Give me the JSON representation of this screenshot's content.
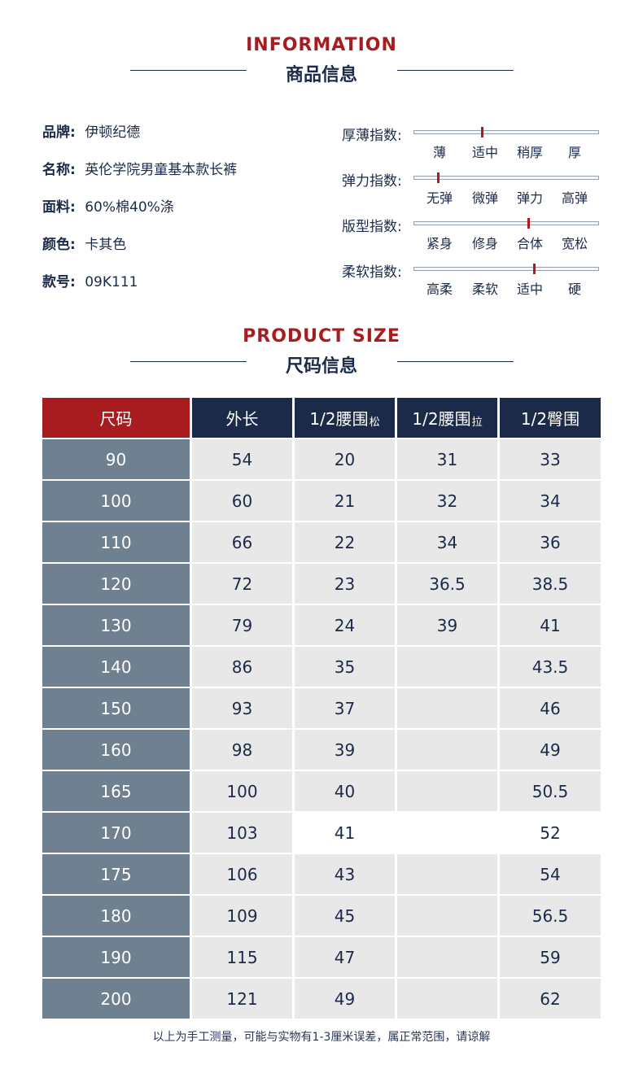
{
  "section_info": {
    "en": "INFORMATION",
    "cn": "商品信息"
  },
  "info": [
    {
      "key": "品牌",
      "value": "伊顿纪德"
    },
    {
      "key": "名称",
      "value": "英伦学院男童基本款长裤"
    },
    {
      "key": "面料",
      "value": "60%棉40%涤"
    },
    {
      "key": "颜色",
      "value": "卡其色"
    },
    {
      "key": "款号",
      "value": "09K111"
    }
  ],
  "indices": [
    {
      "label": "厚薄指数:",
      "options": [
        "薄",
        "适中",
        "稍厚",
        "厚"
      ],
      "marker_level": 0.37
    },
    {
      "label": "弹力指数:",
      "options": [
        "无弹",
        "微弹",
        "弹力",
        "高弹"
      ],
      "marker_level": 0.13
    },
    {
      "label": "版型指数:",
      "options": [
        "紧身",
        "修身",
        "合体",
        "宽松"
      ],
      "marker_level": 0.62
    },
    {
      "label": "柔软指数:",
      "options": [
        "高柔",
        "柔软",
        "适中",
        "硬"
      ],
      "marker_level": 0.65
    }
  ],
  "section_size": {
    "en": "PRODUCT SIZE",
    "cn": "尺码信息"
  },
  "table": {
    "headers": [
      {
        "main": "尺码",
        "sub": ""
      },
      {
        "main": "外长",
        "sub": ""
      },
      {
        "main": "1/2腰围",
        "sub": "松"
      },
      {
        "main": "1/2腰围",
        "sub": "拉"
      },
      {
        "main": "1/2臀围",
        "sub": ""
      }
    ],
    "rows": [
      [
        "90",
        "54",
        "20",
        "31",
        "33"
      ],
      [
        "100",
        "60",
        "21",
        "32",
        "34"
      ],
      [
        "110",
        "66",
        "22",
        "34",
        "36"
      ],
      [
        "120",
        "72",
        "23",
        "36.5",
        "38.5"
      ],
      [
        "130",
        "79",
        "24",
        "39",
        "41"
      ],
      [
        "140",
        "86",
        "35",
        "",
        "43.5"
      ],
      [
        "150",
        "93",
        "37",
        "",
        "46"
      ],
      [
        "160",
        "98",
        "39",
        "",
        "49"
      ],
      [
        "165",
        "100",
        "40",
        "",
        "50.5"
      ],
      [
        "170",
        "103",
        "41",
        "",
        "52"
      ],
      [
        "175",
        "106",
        "43",
        "",
        "54"
      ],
      [
        "180",
        "109",
        "45",
        "",
        "56.5"
      ],
      [
        "190",
        "115",
        "47",
        "",
        "59"
      ],
      [
        "200",
        "121",
        "49",
        "",
        "62"
      ]
    ]
  },
  "footnote": "以上为手工测量，可能与实物有1-3厘米误差，属正常范围，请谅解",
  "colors": {
    "red": "#a81b1f",
    "navy": "#1c2a4a",
    "size_column": "#6f8090",
    "cell_light": "#e8e8e8",
    "white": "#ffffff"
  }
}
